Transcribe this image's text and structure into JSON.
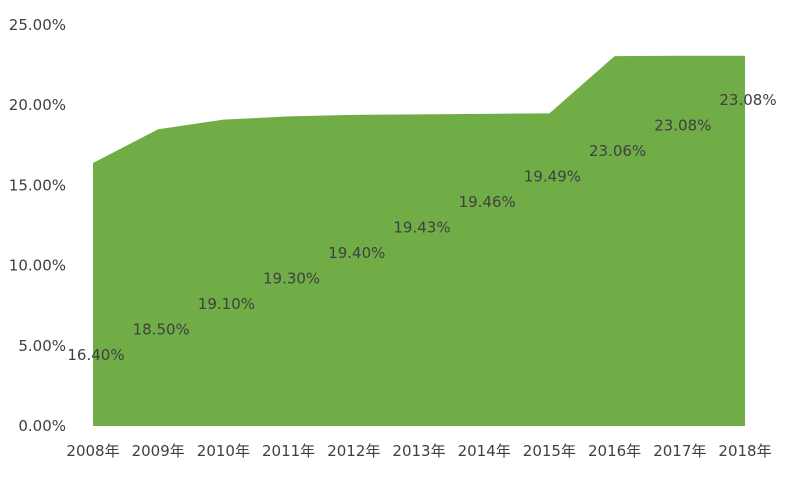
{
  "chart_data": {
    "type": "area",
    "title": "",
    "xlabel": "",
    "ylabel": "",
    "categories": [
      "2008年",
      "2009年",
      "2010年",
      "2011年",
      "2012年",
      "2013年",
      "2014年",
      "2015年",
      "2016年",
      "2017年",
      "2018年"
    ],
    "values": [
      16.4,
      18.5,
      19.1,
      19.3,
      19.4,
      19.43,
      19.46,
      19.49,
      23.06,
      23.08,
      23.08
    ],
    "data_labels": [
      "16.40%",
      "18.50%",
      "19.10%",
      "19.30%",
      "19.40%",
      "19.43%",
      "19.46%",
      "19.49%",
      "23.06%",
      "23.08%",
      "23.08%"
    ],
    "ylim": [
      0,
      25
    ],
    "yticks": [
      0,
      5,
      10,
      15,
      20,
      25
    ],
    "ytick_labels": [
      "0.00%",
      "5.00%",
      "10.00%",
      "15.00%",
      "20.00%",
      "25.00%"
    ],
    "grid": false,
    "legend": "none",
    "colors": {
      "area": "#70AD47",
      "text": "#404040"
    }
  }
}
